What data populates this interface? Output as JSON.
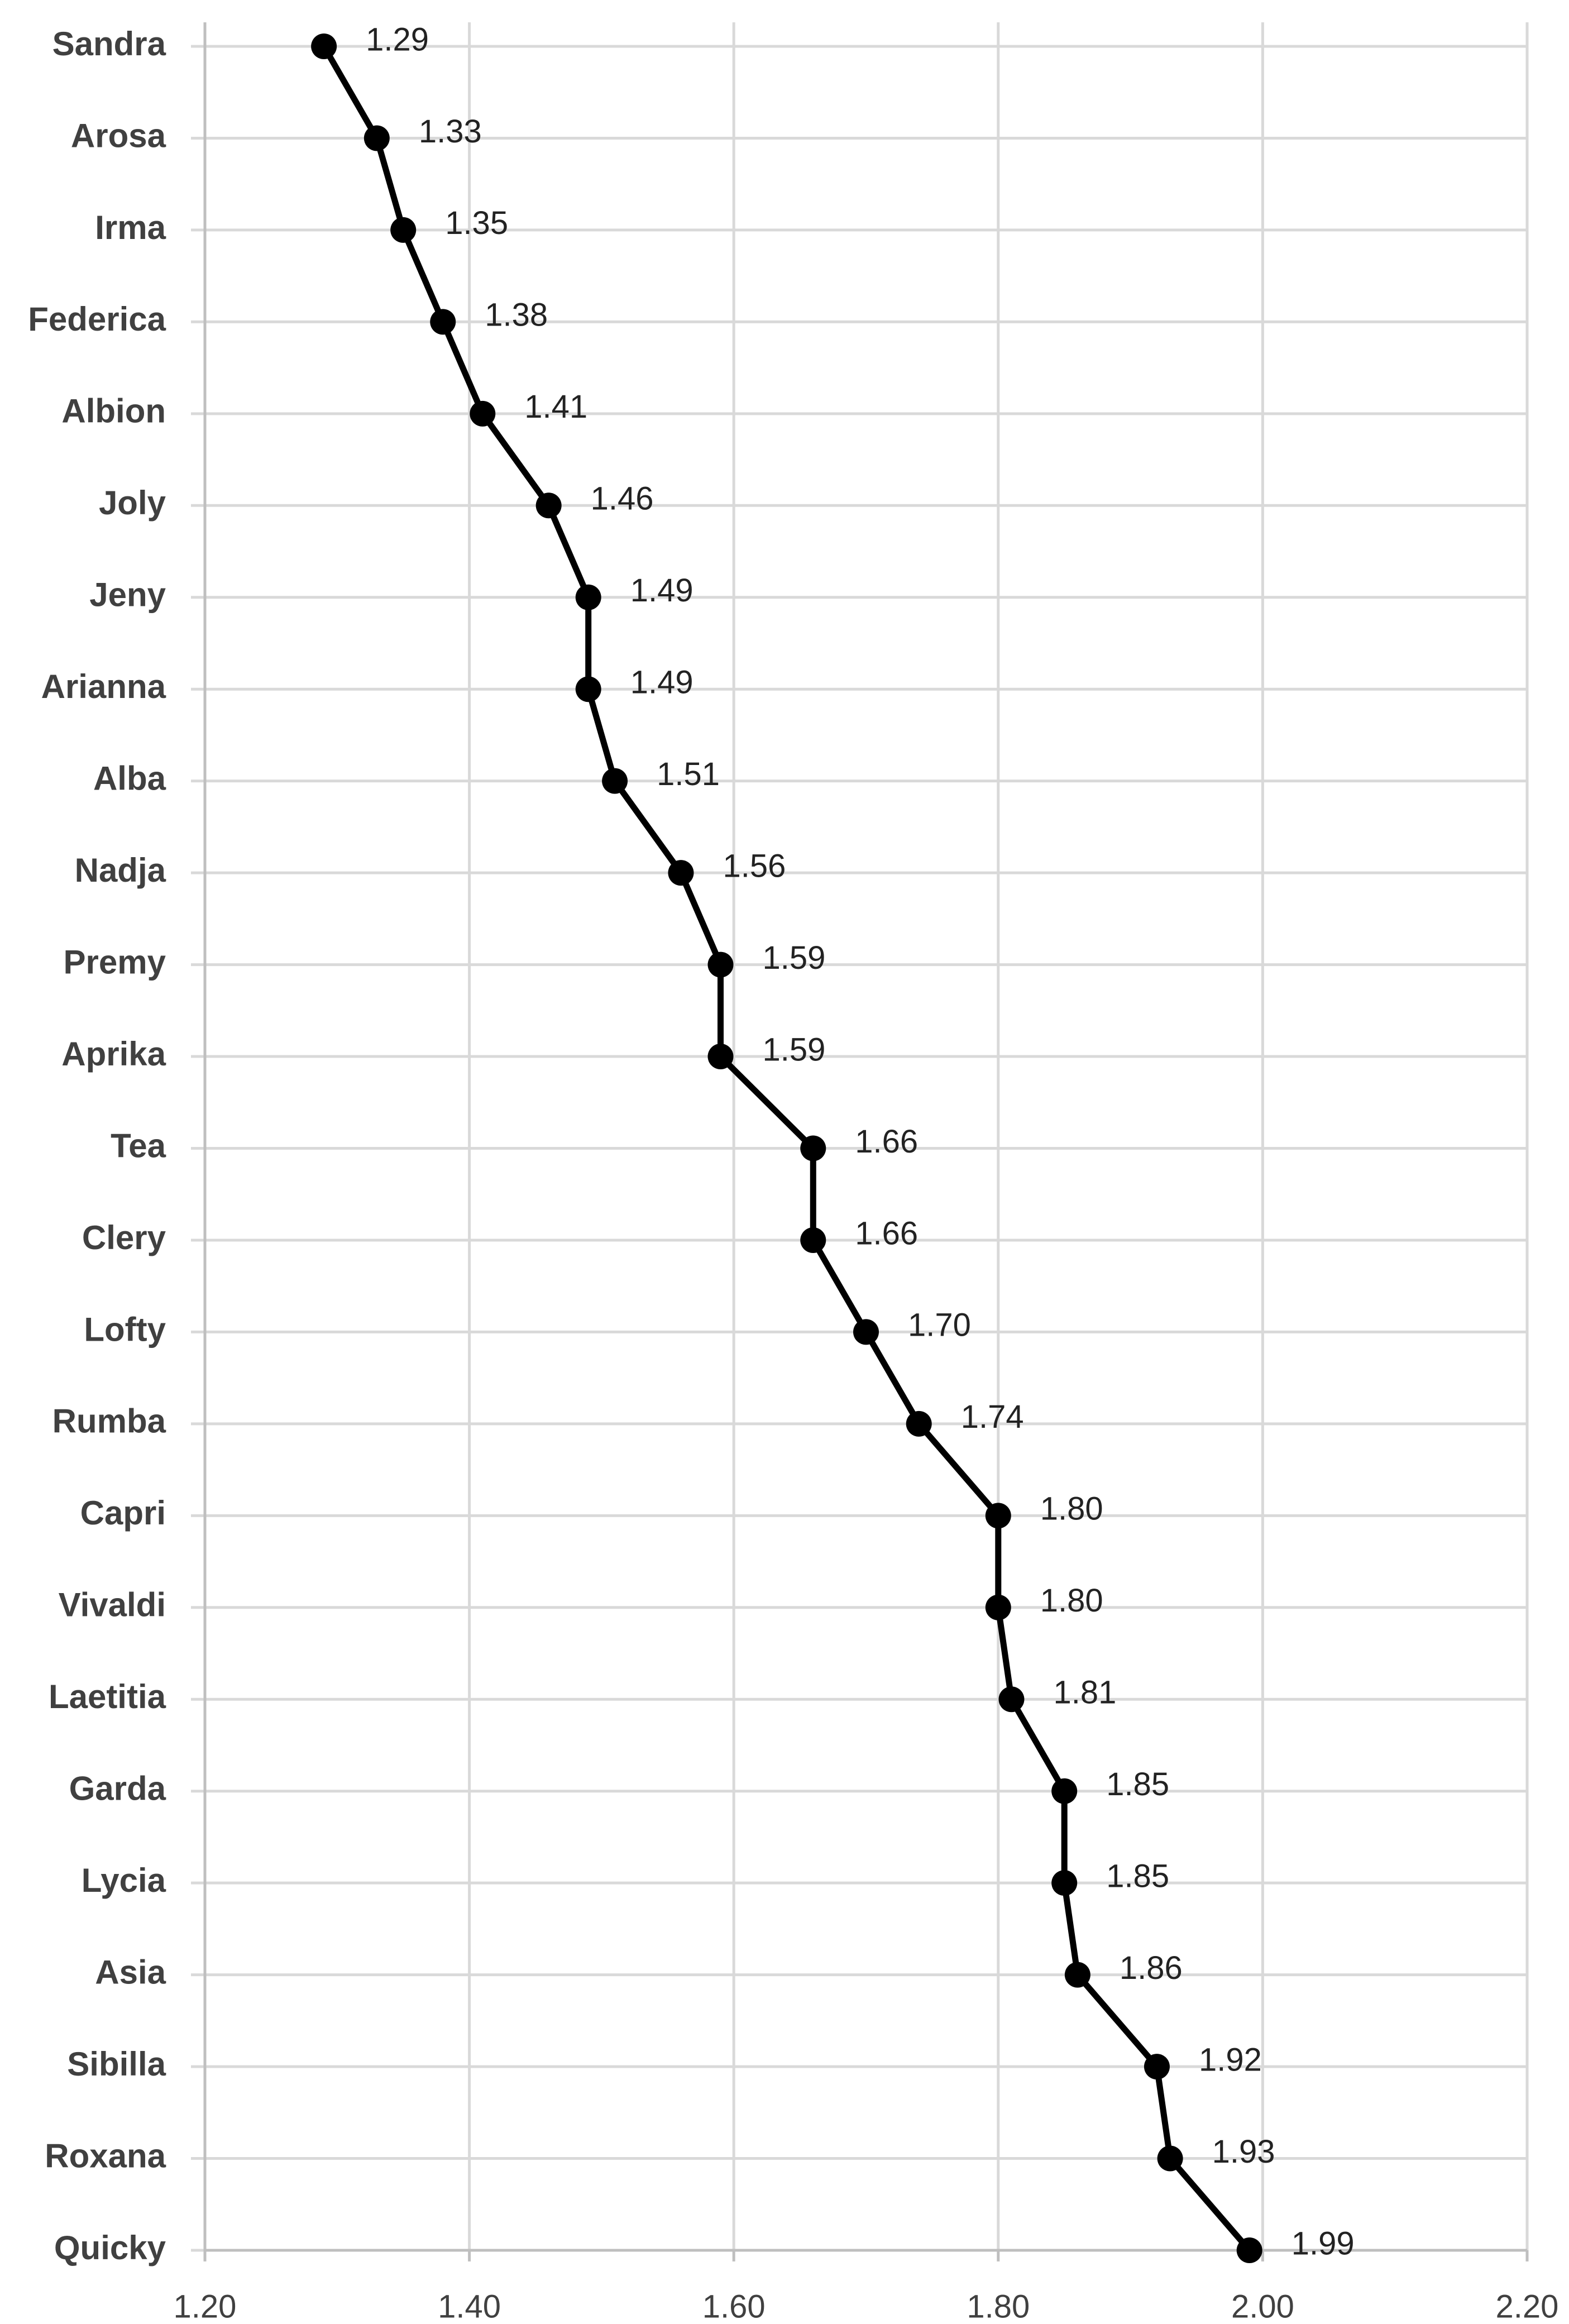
{
  "chart_data": {
    "type": "line",
    "orientation": "horizontal",
    "categories": [
      "Sandra",
      "Arosa",
      "Irma",
      "Federica",
      "Albion",
      "Joly",
      "Jeny",
      "Arianna",
      "Alba",
      "Nadja",
      "Premy",
      "Aprika",
      "Tea",
      "Clery",
      "Lofty",
      "Rumba",
      "Capri",
      "Vivaldi",
      "Laetitia",
      "Garda",
      "Lycia",
      "Asia",
      "Sibilla",
      "Roxana",
      "Quicky"
    ],
    "values": [
      1.29,
      1.33,
      1.35,
      1.38,
      1.41,
      1.46,
      1.49,
      1.49,
      1.51,
      1.56,
      1.59,
      1.59,
      1.66,
      1.66,
      1.7,
      1.74,
      1.8,
      1.8,
      1.81,
      1.85,
      1.85,
      1.86,
      1.92,
      1.93,
      1.99
    ],
    "value_labels": [
      "1.29",
      "1.33",
      "1.35",
      "1.38",
      "1.41",
      "1.46",
      "1.49",
      "1.49",
      "1.51",
      "1.56",
      "1.59",
      "1.59",
      "1.66",
      "1.66",
      "1.70",
      "1.74",
      "1.80",
      "1.80",
      "1.81",
      "1.85",
      "1.85",
      "1.86",
      "1.92",
      "1.93",
      "1.99"
    ],
    "color": "#000000",
    "xlim": [
      1.2,
      2.2
    ],
    "xticks": [
      {
        "value": 1.2,
        "label": "1.20"
      },
      {
        "value": 1.4,
        "label": "1.40"
      },
      {
        "value": 1.6,
        "label": "1.60"
      },
      {
        "value": 1.8,
        "label": "1.80"
      },
      {
        "value": 2.0,
        "label": "2.00"
      },
      {
        "value": 2.2,
        "label": "2.20"
      }
    ],
    "grid": true
  }
}
